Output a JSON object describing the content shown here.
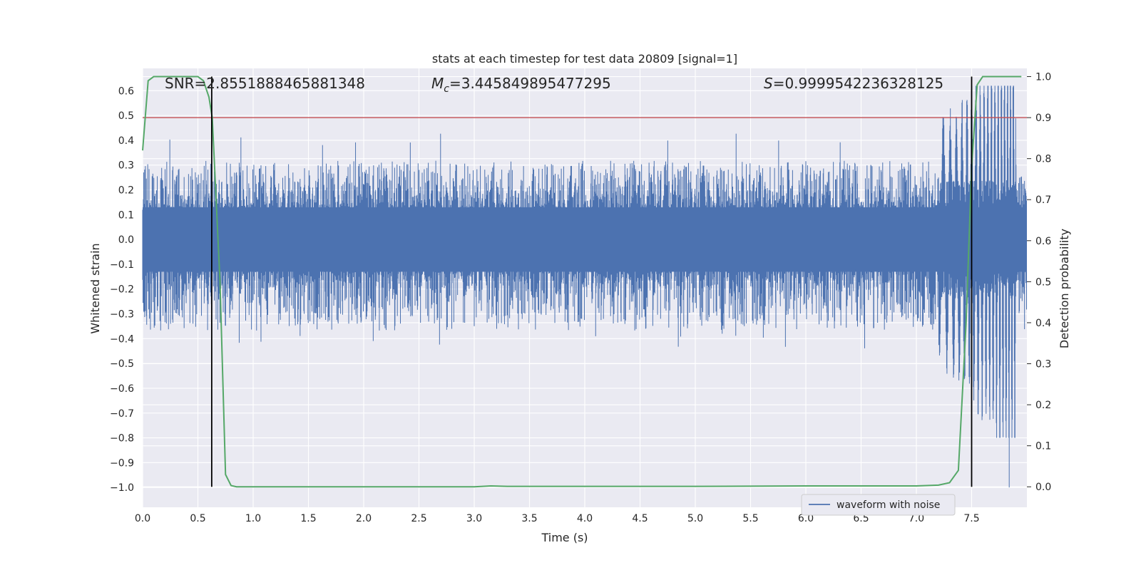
{
  "chart_data": {
    "type": "line",
    "title": "stats at each timestep for test data 20809 [signal=1]",
    "xlabel": "Time (s)",
    "ylabel_left": "Whitened strain",
    "ylabel_right": "Detection probability",
    "xlim": [
      0.0,
      8.0
    ],
    "ylim_left": [
      -1.08,
      0.69
    ],
    "ylim_right": [
      -0.05,
      1.02
    ],
    "x_ticks": [
      "0.0",
      "0.5",
      "1.0",
      "1.5",
      "2.0",
      "2.5",
      "3.0",
      "3.5",
      "4.0",
      "4.5",
      "5.0",
      "5.5",
      "6.0",
      "6.5",
      "7.0",
      "7.5"
    ],
    "x_tick_values": [
      0.0,
      0.5,
      1.0,
      1.5,
      2.0,
      2.5,
      3.0,
      3.5,
      4.0,
      4.5,
      5.0,
      5.5,
      6.0,
      6.5,
      7.0,
      7.5
    ],
    "y_left_ticks": [
      "0.6",
      "0.5",
      "0.4",
      "0.3",
      "0.2",
      "0.1",
      "0.0",
      "−0.1",
      "−0.2",
      "−0.3",
      "−0.4",
      "−0.5",
      "−0.6",
      "−0.7",
      "−0.8",
      "−0.9",
      "−1.0"
    ],
    "y_left_tick_values": [
      0.6,
      0.5,
      0.4,
      0.3,
      0.2,
      0.1,
      0.0,
      -0.1,
      -0.2,
      -0.3,
      -0.4,
      -0.5,
      -0.6,
      -0.7,
      -0.8,
      -0.9,
      -1.0
    ],
    "y_right_ticks": [
      "1.0",
      "0.9",
      "0.8",
      "0.7",
      "0.6",
      "0.5",
      "0.4",
      "0.3",
      "0.2",
      "0.1",
      "0.0"
    ],
    "y_right_tick_values": [
      1.0,
      0.9,
      0.8,
      0.7,
      0.6,
      0.5,
      0.4,
      0.3,
      0.2,
      0.1,
      0.0
    ],
    "grid": true,
    "legend": {
      "entries": [
        "waveform with noise"
      ],
      "placement": "lower-right"
    },
    "annotations": {
      "snr": "SNR=2.8551888465881348",
      "mc_symbol": "M",
      "mc_subscript": "c",
      "mc_value": "=3.445849895477295",
      "s_symbol": "S",
      "s_value": "=0.9999542236328125"
    },
    "series": [
      {
        "name": "waveform with noise",
        "axis": "left",
        "kind": "noise-waveform",
        "color": "#4c72b0",
        "core_amplitude": 0.13,
        "typical_peak": 0.3,
        "max_peak": 0.43,
        "chirp_start": 7.2,
        "chirp_end": 7.9,
        "chirp_max": 0.62,
        "chirp_min": -1.0,
        "duration": 8.0
      },
      {
        "axis": "right",
        "kind": "probability",
        "color": "#55a868",
        "x": [
          0.0,
          0.05,
          0.1,
          0.15,
          0.2,
          0.3,
          0.4,
          0.5,
          0.55,
          0.6,
          0.63,
          0.7,
          0.75,
          0.8,
          0.85,
          1.0,
          2.0,
          3.0,
          3.15,
          3.3,
          4.0,
          5.0,
          6.0,
          6.5,
          7.0,
          7.2,
          7.3,
          7.38,
          7.45,
          7.5,
          7.55,
          7.6,
          7.65,
          7.8,
          7.95
        ],
        "y": [
          0.82,
          0.99,
          1.0,
          1.0,
          1.0,
          1.0,
          1.0,
          1.0,
          0.99,
          0.95,
          0.9,
          0.5,
          0.03,
          0.003,
          0.0,
          0.0,
          0.0,
          0.0,
          0.002,
          0.001,
          0.001,
          0.001,
          0.002,
          0.002,
          0.002,
          0.004,
          0.01,
          0.04,
          0.4,
          0.78,
          0.98,
          1.0,
          1.0,
          1.0,
          1.0
        ]
      }
    ],
    "threshold": {
      "axis": "right",
      "value": 0.9,
      "color": "#c44e52"
    },
    "vertical_markers": {
      "x": [
        0.625,
        7.5
      ],
      "color": "#000000"
    },
    "colors": {
      "background": "#eaeaf2",
      "grid": "#ffffff",
      "text": "#262626"
    }
  }
}
